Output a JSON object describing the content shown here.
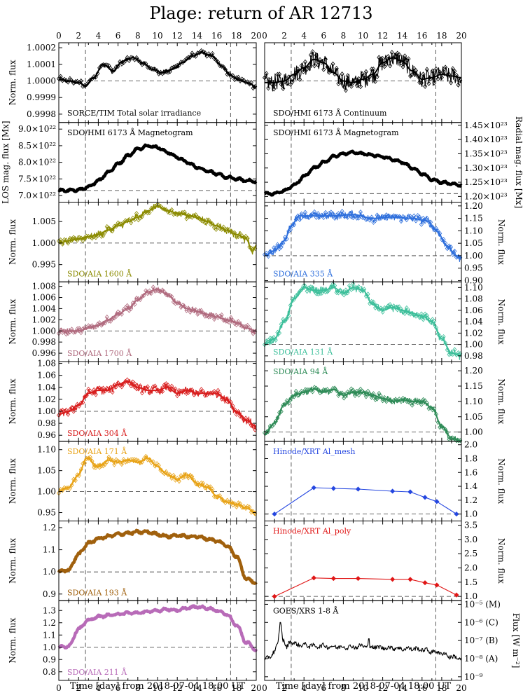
{
  "title": "Plage: return of AR 12713",
  "x_axis": {
    "label": "Time [day] from 2018-07-04 18:00 UT",
    "range": [
      0,
      20
    ],
    "ticks": [
      "0",
      "2",
      "4",
      "6",
      "8",
      "10",
      "12",
      "14",
      "16",
      "18",
      "20"
    ],
    "reference_lines": [
      2.7,
      17.4
    ]
  },
  "chart_data": [
    {
      "id": "tsi",
      "type": "line",
      "column": "left",
      "row": 0,
      "label": "SORCE/TIM Total solar irradiance",
      "color": "#000000",
      "ylabel": "Norm. flux",
      "ylabel_side": "left",
      "ylim": [
        0.99975,
        1.00023
      ],
      "yticks": [
        "0.9998",
        "0.9999",
        "1.0000",
        "1.0001",
        "1.0002"
      ],
      "reference_y": 1.0,
      "markers": true,
      "noise": 1.2e-05,
      "x": [
        0,
        1,
        2,
        2.7,
        3.5,
        4.5,
        5.5,
        6.5,
        7.5,
        8.5,
        9.5,
        10.5,
        11.5,
        12.5,
        13.5,
        14.5,
        15.5,
        16.5,
        17.5,
        18.5,
        19.5,
        20
      ],
      "y": [
        1.00001,
        1.0,
        0.99999,
        0.99997,
        1.00002,
        1.0001,
        1.00006,
        1.00012,
        1.00014,
        1.00011,
        1.00007,
        1.00005,
        1.00007,
        1.00011,
        1.00015,
        1.00017,
        1.00015,
        1.00009,
        1.00003,
        1.0,
        0.99998,
        0.99996
      ]
    },
    {
      "id": "hmi_cont",
      "type": "line",
      "column": "right",
      "row": 0,
      "label": "SDO/HMI 6173 Å Continuum",
      "color": "#000000",
      "ylabel": "",
      "ylabel_side": "none",
      "ylim": [
        0.99975,
        1.00023
      ],
      "yticks": [],
      "reference_y": 1.0,
      "markers": true,
      "noise": 5e-05,
      "x": [
        0,
        1,
        2,
        3,
        4,
        5,
        6,
        7,
        8,
        9,
        10,
        11,
        12,
        13,
        14,
        15,
        16,
        17,
        18,
        19,
        20
      ],
      "y": [
        0.99999,
        0.99999,
        1.0,
        1.00004,
        1.00008,
        1.00013,
        1.00011,
        1.00005,
        1.0,
        0.99999,
        1.00001,
        1.00004,
        1.00011,
        1.00014,
        1.00012,
        1.00006,
        1.00001,
        1.00002,
        1.00004,
        1.00003,
        1.00002
      ]
    },
    {
      "id": "mag_los",
      "type": "line",
      "column": "left",
      "row": 1,
      "label": "SDO/HMI 6173 Å Magnetogram",
      "color": "#000000",
      "ylabel": "LOS mag. flux [Mx]",
      "ylabel_side": "left",
      "ylim": [
        6.8e+22,
        9.2e+22
      ],
      "yticks": [
        "7.0×10²²",
        "7.5×10²²",
        "8.0×10²²",
        "8.5×10²²",
        "9.0×10²²"
      ],
      "ytick_values": [
        7e+22,
        7.5e+22,
        8e+22,
        8.5e+22,
        9e+22
      ],
      "reference_y": 7.15e+22,
      "markers": false,
      "thick": true,
      "noise": 2e+20,
      "x": [
        0,
        1,
        2,
        3,
        4,
        5,
        6,
        7,
        8,
        9,
        10,
        11,
        12,
        13,
        14,
        15,
        16,
        17,
        18,
        19,
        20
      ],
      "y": [
        7.15e+22,
        7.15e+22,
        7.17e+22,
        7.25e+22,
        7.45e+22,
        7.7e+22,
        7.95e+22,
        8.2e+22,
        8.4e+22,
        8.5e+22,
        8.45e+22,
        8.3e+22,
        8.15e+22,
        8e+22,
        7.85e+22,
        7.75e+22,
        7.65e+22,
        7.55e+22,
        7.5e+22,
        7.45e+22,
        7.42e+22
      ]
    },
    {
      "id": "mag_rad",
      "type": "line",
      "column": "right",
      "row": 1,
      "label": "SDO/HMI 6173 Å Magnetogram",
      "color": "#000000",
      "ylabel": "Radial mag. flux [Mx]",
      "ylabel_side": "right",
      "ylim": [
        1.18e+23,
        1.46e+23
      ],
      "yticks": [
        "1.20×10²³",
        "1.25×10²³",
        "1.30×10²³",
        "1.35×10²³",
        "1.40×10²³",
        "1.45×10²³"
      ],
      "ytick_values": [
        1.2e+23,
        1.25e+23,
        1.3e+23,
        1.35e+23,
        1.4e+23,
        1.45e+23
      ],
      "reference_y": 1.21e+23,
      "markers": false,
      "thick": true,
      "noise": 2e+20,
      "x": [
        0,
        1,
        2,
        3,
        4,
        5,
        6,
        7,
        8,
        9,
        10,
        11,
        12,
        13,
        14,
        15,
        16,
        17,
        18,
        19,
        20
      ],
      "y": [
        1.21e+23,
        1.21e+23,
        1.22e+23,
        1.24e+23,
        1.27e+23,
        1.3e+23,
        1.32e+23,
        1.34e+23,
        1.35e+23,
        1.355e+23,
        1.35e+23,
        1.345e+23,
        1.34e+23,
        1.33e+23,
        1.32e+23,
        1.3e+23,
        1.28e+23,
        1.26e+23,
        1.25e+23,
        1.245e+23,
        1.24e+23
      ]
    },
    {
      "id": "aia1600",
      "type": "line",
      "column": "left",
      "row": 2,
      "label": "SDO/AIA 1600 Å",
      "color": "#8b8b00",
      "ylabel": "Norm. flux",
      "ylabel_side": "left",
      "ylim": [
        0.991,
        1.0095
      ],
      "yticks": [
        "0.995",
        "1.000",
        "1.005"
      ],
      "ytick_values": [
        0.995,
        1.0,
        1.005
      ],
      "reference_y": 1.0,
      "markers": true,
      "noise": 0.0007,
      "x": [
        0,
        1,
        2,
        3,
        4,
        5,
        6,
        7,
        8,
        9,
        10,
        11,
        12,
        13,
        14,
        15,
        16,
        17,
        18,
        19,
        19.6,
        20
      ],
      "y": [
        1.0,
        1.0005,
        1.001,
        1.0015,
        1.002,
        1.003,
        1.004,
        1.005,
        1.006,
        1.0075,
        1.0085,
        1.0075,
        1.007,
        1.0065,
        1.006,
        1.005,
        1.004,
        1.003,
        1.002,
        1.001,
        0.998,
        0.9995
      ]
    },
    {
      "id": "aia335",
      "type": "line",
      "column": "right",
      "row": 2,
      "label": "SDO/AIA 335 Å",
      "color": "#2e6fdc",
      "ylabel": "Norm. flux",
      "ylabel_side": "right",
      "ylim": [
        0.895,
        1.215
      ],
      "yticks": [
        "0.90",
        "0.95",
        "1.00",
        "1.05",
        "1.10",
        "1.15",
        "1.20"
      ],
      "ytick_values": [
        0.9,
        0.95,
        1.0,
        1.05,
        1.1,
        1.15,
        1.2
      ],
      "reference_y": 1.0,
      "markers": true,
      "noise": 0.014,
      "x": [
        0,
        1,
        2,
        2.7,
        3.5,
        5,
        7,
        9,
        11,
        13,
        15,
        16.5,
        17.5,
        18.5,
        19.5,
        20
      ],
      "y": [
        1.0,
        1.02,
        1.06,
        1.12,
        1.16,
        1.16,
        1.16,
        1.165,
        1.15,
        1.155,
        1.15,
        1.14,
        1.1,
        1.04,
        1.0,
        0.99
      ]
    },
    {
      "id": "aia1700",
      "type": "line",
      "column": "left",
      "row": 3,
      "label": "SDO/AIA 1700 Å",
      "color": "#b06a7e",
      "ylabel": "Norm. flux",
      "ylabel_side": "left",
      "ylim": [
        0.9945,
        1.0088
      ],
      "yticks": [
        "0.996",
        "0.998",
        "1.000",
        "1.002",
        "1.004",
        "1.006",
        "1.008"
      ],
      "ytick_values": [
        0.996,
        0.998,
        1.0,
        1.002,
        1.004,
        1.006,
        1.008
      ],
      "reference_y": 1.0,
      "markers": true,
      "noise": 0.0005,
      "x": [
        0,
        1,
        2,
        3,
        4,
        5,
        6,
        7,
        8,
        9,
        10,
        11,
        12,
        13,
        14,
        15,
        16,
        17,
        18,
        19,
        20
      ],
      "y": [
        1.0,
        1.0,
        1.0,
        1.0005,
        1.001,
        1.002,
        1.003,
        1.004,
        1.0055,
        1.007,
        1.0075,
        1.0065,
        1.005,
        1.004,
        1.0035,
        1.003,
        1.0025,
        1.002,
        1.0015,
        1.0005,
        1.0
      ]
    },
    {
      "id": "aia131",
      "type": "line",
      "column": "right",
      "row": 3,
      "label": "SDO/AIA 131 Å",
      "color": "#3cbf9a",
      "ylabel": "Norm. flux",
      "ylabel_side": "right",
      "ylim": [
        0.97,
        1.11
      ],
      "yticks": [
        "0.98",
        "1.00",
        "1.02",
        "1.04",
        "1.06",
        "1.08",
        "1.10"
      ],
      "ytick_values": [
        0.98,
        1.0,
        1.02,
        1.04,
        1.06,
        1.08,
        1.1
      ],
      "reference_y": 1.0,
      "markers": true,
      "noise": 0.006,
      "x": [
        0,
        1,
        2,
        3,
        4,
        5,
        6,
        7,
        8,
        9,
        10,
        11,
        12,
        13,
        14,
        15,
        16,
        17,
        18,
        19,
        20
      ],
      "y": [
        1.0,
        1.01,
        1.04,
        1.08,
        1.1,
        1.095,
        1.095,
        1.1,
        1.09,
        1.1,
        1.095,
        1.07,
        1.06,
        1.065,
        1.06,
        1.055,
        1.05,
        1.04,
        1.01,
        0.985,
        0.98
      ]
    },
    {
      "id": "aia304",
      "type": "line",
      "column": "left",
      "row": 4,
      "label": "SDO/AIA 304 Å",
      "color": "#d81e1e",
      "ylabel": "Norm. flux",
      "ylabel_side": "left",
      "ylim": [
        0.95,
        1.083
      ],
      "yticks": [
        "0.96",
        "0.98",
        "1.00",
        "1.02",
        "1.04",
        "1.06",
        "1.08"
      ],
      "ytick_values": [
        0.96,
        0.98,
        1.0,
        1.02,
        1.04,
        1.06,
        1.08
      ],
      "reference_y": 1.0,
      "markers": true,
      "noise": 0.006,
      "x": [
        0,
        1,
        2,
        3,
        4,
        5,
        6,
        7,
        8,
        9,
        10,
        11,
        12,
        13,
        14,
        15,
        16,
        17,
        18,
        19,
        20
      ],
      "y": [
        0.995,
        1.0,
        1.01,
        1.03,
        1.035,
        1.035,
        1.045,
        1.05,
        1.04,
        1.035,
        1.035,
        1.04,
        1.03,
        1.035,
        1.03,
        1.03,
        1.03,
        1.02,
        1.0,
        0.985,
        0.975
      ]
    },
    {
      "id": "aia94",
      "type": "line",
      "column": "right",
      "row": 4,
      "label": "SDO/AIA 94 Å",
      "color": "#2e8b57",
      "ylabel": "Norm. flux",
      "ylabel_side": "right",
      "ylim": [
        0.97,
        1.23
      ],
      "yticks": [
        "1.00",
        "1.05",
        "1.10",
        "1.15",
        "1.20"
      ],
      "ytick_values": [
        1.0,
        1.05,
        1.1,
        1.15,
        1.2
      ],
      "reference_y": 1.0,
      "markers": true,
      "noise": 0.01,
      "x": [
        0,
        1,
        2,
        3,
        4,
        5,
        6,
        7,
        8,
        9,
        10,
        11,
        12,
        13,
        14,
        15,
        16,
        17,
        18,
        19,
        20
      ],
      "y": [
        0.99,
        1.03,
        1.09,
        1.12,
        1.13,
        1.14,
        1.13,
        1.14,
        1.12,
        1.13,
        1.13,
        1.12,
        1.11,
        1.1,
        1.105,
        1.1,
        1.1,
        1.08,
        1.02,
        0.98,
        0.97
      ]
    },
    {
      "id": "aia171",
      "type": "line",
      "column": "left",
      "row": 5,
      "label": "SDO/AIA 171 Å",
      "color": "#e8a317",
      "ylabel": "Norm. flux",
      "ylabel_side": "left",
      "ylim": [
        0.93,
        1.12
      ],
      "yticks": [
        "0.95",
        "1.00",
        "1.05",
        "1.10"
      ],
      "ytick_values": [
        0.95,
        1.0,
        1.05,
        1.1
      ],
      "reference_y": 1.0,
      "markers": true,
      "noise": 0.006,
      "x": [
        0,
        1,
        2,
        2.8,
        4,
        5,
        6,
        7,
        8,
        9,
        10,
        11,
        12,
        13,
        14,
        15,
        16,
        17,
        18,
        19,
        20
      ],
      "y": [
        1.0,
        1.01,
        1.04,
        1.08,
        1.06,
        1.075,
        1.07,
        1.075,
        1.07,
        1.08,
        1.06,
        1.04,
        1.03,
        1.04,
        1.02,
        1.01,
        0.99,
        0.975,
        0.97,
        0.96,
        0.95
      ]
    },
    {
      "id": "xrt_mesh",
      "type": "line",
      "column": "right",
      "row": 5,
      "label": "Hinode/XRT Al_mesh",
      "color": "#2446e0",
      "ylabel": "Norm. flux",
      "ylabel_side": "right",
      "ylim": [
        0.9,
        2.05
      ],
      "yticks": [
        "1.0",
        "1.2",
        "1.4",
        "1.6",
        "1.8",
        "2.0"
      ],
      "ytick_values": [
        1.0,
        1.2,
        1.4,
        1.6,
        1.8,
        2.0
      ],
      "reference_y": 1.0,
      "markers": true,
      "noise": 0,
      "x": [
        1.0,
        5.0,
        7.0,
        9.5,
        13.0,
        14.8,
        16.3,
        17.5,
        19.5
      ],
      "y": [
        1.0,
        1.38,
        1.37,
        1.36,
        1.33,
        1.32,
        1.24,
        1.18,
        1.0
      ]
    },
    {
      "id": "aia193",
      "type": "line",
      "column": "left",
      "row": 6,
      "label": "SDO/AIA 193 Å",
      "color": "#a0600d",
      "ylabel": "Norm. flux",
      "ylabel_side": "left",
      "ylim": [
        0.87,
        1.23
      ],
      "yticks": [
        "0.9",
        "1.0",
        "1.1",
        "1.2"
      ],
      "ytick_values": [
        0.9,
        1.0,
        1.1,
        1.2
      ],
      "reference_y": 1.0,
      "markers": false,
      "thick": true,
      "noise": 0.004,
      "x": [
        0,
        1,
        2,
        3,
        4,
        5,
        6,
        7,
        8,
        9,
        10,
        11,
        12,
        13,
        14,
        15,
        16,
        17,
        18,
        19,
        20
      ],
      "y": [
        1.0,
        1.01,
        1.08,
        1.13,
        1.15,
        1.16,
        1.17,
        1.175,
        1.18,
        1.18,
        1.17,
        1.16,
        1.165,
        1.16,
        1.16,
        1.15,
        1.14,
        1.12,
        1.07,
        0.97,
        0.95
      ]
    },
    {
      "id": "xrt_poly",
      "type": "line",
      "column": "right",
      "row": 6,
      "label": "Hinode/XRT Al_poly",
      "color": "#e01616",
      "ylabel": "Norm. flux",
      "ylabel_side": "right",
      "ylim": [
        0.85,
        3.65
      ],
      "yticks": [
        "1.0",
        "1.5",
        "2.0",
        "2.5",
        "3.0",
        "3.5"
      ],
      "ytick_values": [
        1.0,
        1.5,
        2.0,
        2.5,
        3.0,
        3.5
      ],
      "reference_y": 1.0,
      "markers": true,
      "noise": 0,
      "x": [
        1.0,
        5.0,
        7.0,
        9.5,
        13.0,
        14.8,
        16.3,
        17.5,
        19.5
      ],
      "y": [
        1.0,
        1.65,
        1.63,
        1.63,
        1.6,
        1.6,
        1.48,
        1.4,
        1.05
      ]
    },
    {
      "id": "aia211",
      "type": "line",
      "column": "left",
      "row": 7,
      "label": "SDO/AIA 211 Å",
      "color": "#b86bb8",
      "ylabel": "Norm. flux",
      "ylabel_side": "left",
      "ylim": [
        0.73,
        1.38
      ],
      "yticks": [
        "0.8",
        "0.9",
        "1.0",
        "1.1",
        "1.2",
        "1.3"
      ],
      "ytick_values": [
        0.8,
        0.9,
        1.0,
        1.1,
        1.2,
        1.3
      ],
      "reference_y": 1.0,
      "markers": false,
      "thick": true,
      "noise": 0.006,
      "x": [
        0,
        1,
        2,
        3,
        4,
        5,
        6,
        7,
        8,
        9,
        10,
        11,
        12,
        13,
        14,
        15,
        16,
        17,
        18,
        19,
        20
      ],
      "y": [
        1.0,
        1.01,
        1.15,
        1.22,
        1.25,
        1.26,
        1.27,
        1.28,
        1.28,
        1.29,
        1.3,
        1.31,
        1.3,
        1.32,
        1.33,
        1.32,
        1.3,
        1.27,
        1.18,
        1.04,
        0.98
      ]
    },
    {
      "id": "goes",
      "type": "line",
      "column": "right",
      "row": 7,
      "label": "GOES/XRS 1-8 Å",
      "color": "#000000",
      "ylabel": "Flux [W m⁻²]",
      "ylabel_side": "right",
      "yscale": "log",
      "ylim": [
        -9.2,
        -4.8
      ],
      "yticks": [
        "10⁻⁵ (M)",
        "10⁻⁶ (C)",
        "10⁻⁷ (B)",
        "10⁻⁸ (A)",
        "10⁻⁹"
      ],
      "ytick_values": [
        -5,
        -6,
        -7,
        -8,
        -9
      ],
      "reference_y": null,
      "markers": false,
      "noise": 0.12,
      "x": [
        0,
        0.5,
        1,
        1.3,
        1.6,
        1.9,
        2.2,
        2.6,
        3,
        4,
        5,
        6,
        7,
        8,
        9,
        10,
        11,
        12,
        13,
        14,
        15,
        16,
        17,
        18,
        19,
        20
      ],
      "y": [
        -8.1,
        -7.9,
        -7.6,
        -7.3,
        -6.0,
        -7.0,
        -7.4,
        -7.0,
        -7.2,
        -7.25,
        -7.3,
        -7.3,
        -7.35,
        -7.35,
        -7.35,
        -7.3,
        -7.35,
        -7.4,
        -7.4,
        -7.45,
        -7.45,
        -7.5,
        -7.6,
        -7.7,
        -7.9,
        -8.0
      ]
    }
  ]
}
